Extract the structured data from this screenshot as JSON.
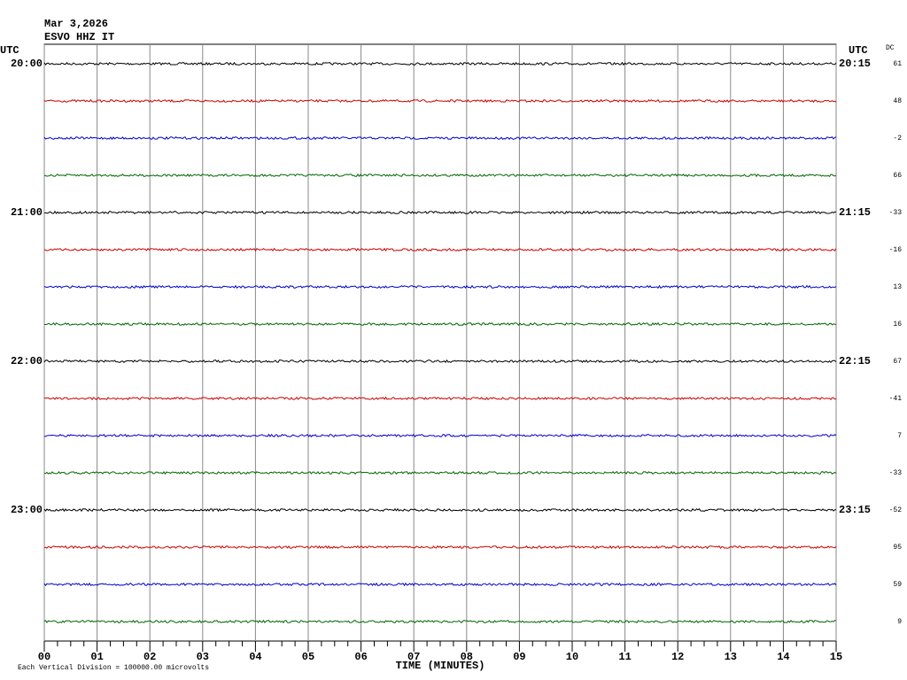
{
  "chart_data": {
    "type": "helicorder",
    "title": "Mar 3,2026",
    "subtitle": "ESVO HHZ IT",
    "left_axis_label": "UTC",
    "right_axis_label": "UTC",
    "dc_label": "DC",
    "left_labels": [
      "20:00",
      null,
      null,
      null,
      "21:00",
      null,
      null,
      null,
      "22:00",
      null,
      null,
      null,
      "23:00",
      null,
      null,
      null
    ],
    "right_labels": [
      "20:15",
      null,
      null,
      null,
      "21:15",
      null,
      null,
      null,
      "22:15",
      null,
      null,
      null,
      "23:15",
      null,
      null,
      null
    ],
    "dc_offsets": [
      61,
      48,
      -2,
      66,
      -33,
      -16,
      13,
      16,
      67,
      -41,
      7,
      -33,
      -52,
      95,
      59,
      9
    ],
    "trace_colors": [
      "#000000",
      "#cc0000",
      "#0000cc",
      "#006600"
    ],
    "xlabel": "TIME (MINUTES)",
    "xlim": [
      0,
      15
    ],
    "xticks": [
      {
        "value": 0,
        "label": "00"
      },
      {
        "value": 1,
        "label": "01"
      },
      {
        "value": 2,
        "label": "02"
      },
      {
        "value": 3,
        "label": "03"
      },
      {
        "value": 4,
        "label": "04"
      },
      {
        "value": 5,
        "label": "05"
      },
      {
        "value": 6,
        "label": "06"
      },
      {
        "value": 7,
        "label": "07"
      },
      {
        "value": 8,
        "label": "08"
      },
      {
        "value": 9,
        "label": "09"
      },
      {
        "value": 10,
        "label": "10"
      },
      {
        "value": 11,
        "label": "11"
      },
      {
        "value": 12,
        "label": "12"
      },
      {
        "value": 13,
        "label": "13"
      },
      {
        "value": 14,
        "label": "14"
      },
      {
        "value": 15,
        "label": "15"
      }
    ],
    "footnote": "Each Vertical Division = 100000.00 microvolts",
    "grid": true
  }
}
